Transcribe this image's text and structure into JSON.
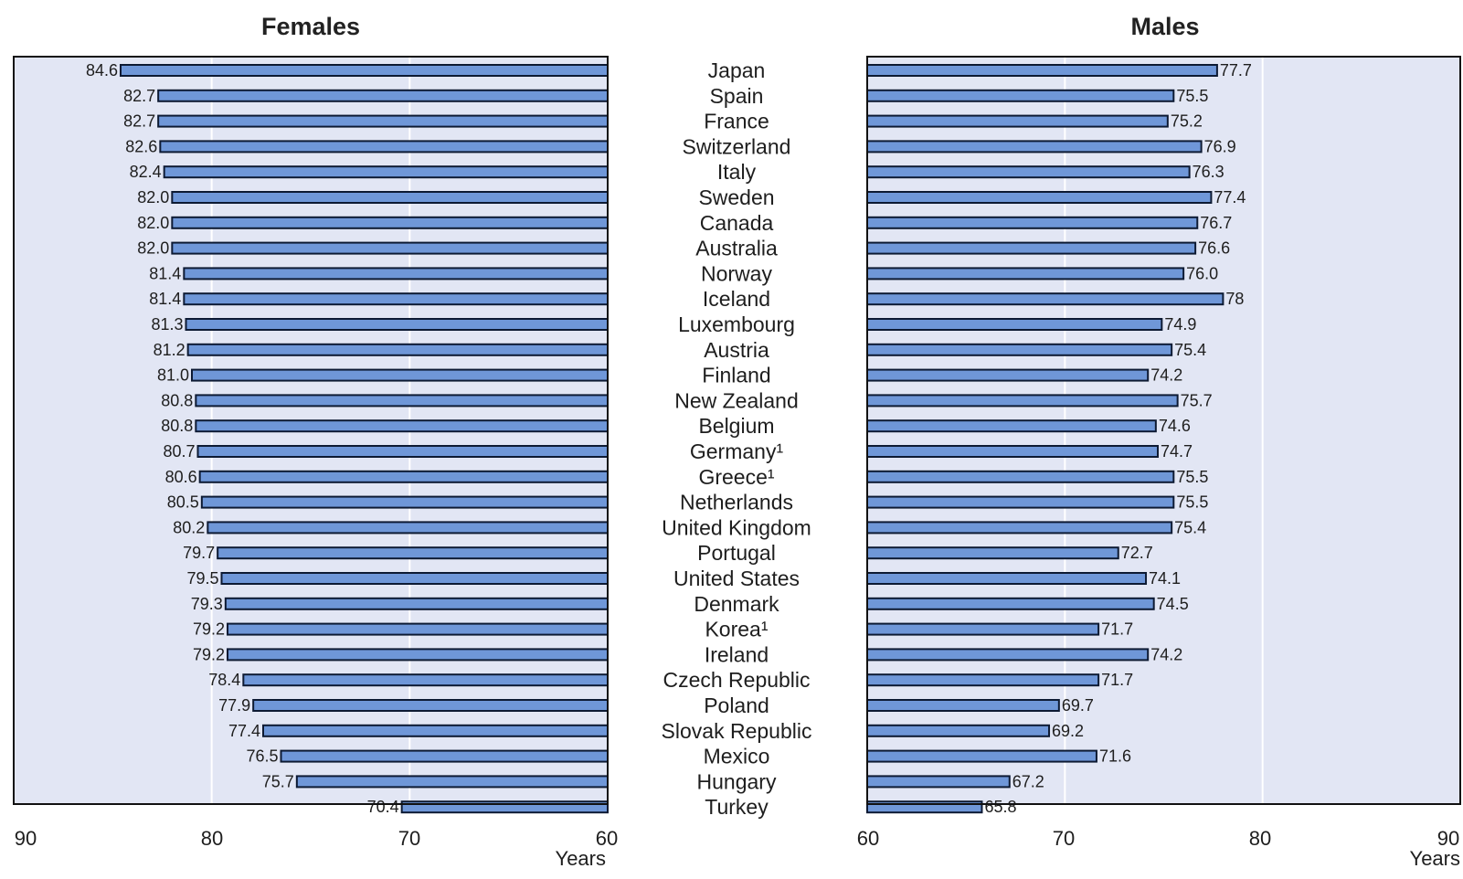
{
  "colors": {
    "bar_fill": "#6f97d8",
    "bar_stroke": "#0d1a33",
    "plot_background": "#e2e6f4",
    "gridline": "#ffffff",
    "frame": "#111111"
  },
  "chart_data": [
    {
      "type": "bar",
      "orientation": "horizontal",
      "title": "Females",
      "xlabel": "Years",
      "xlim": [
        60,
        90
      ],
      "x_direction": "reversed",
      "ticks": [
        "90",
        "80",
        "70",
        "60"
      ],
      "categories": [
        "Japan",
        "Spain",
        "France",
        "Switzerland",
        "Italy",
        "Sweden",
        "Canada",
        "Australia",
        "Norway",
        "Iceland",
        "Luxembourg",
        "Austria",
        "Finland",
        "New Zealand",
        "Belgium",
        "Germany¹",
        "Greece¹",
        "Netherlands",
        "United Kingdom",
        "Portugal",
        "United States",
        "Denmark",
        "Korea¹",
        "Ireland",
        "Czech Republic",
        "Poland",
        "Slovak Republic",
        "Mexico",
        "Hungary",
        "Turkey"
      ],
      "values": [
        84.6,
        82.7,
        82.7,
        82.6,
        82.4,
        82.0,
        82.0,
        82.0,
        81.4,
        81.4,
        81.3,
        81.2,
        81.0,
        80.8,
        80.8,
        80.7,
        80.6,
        80.5,
        80.2,
        79.7,
        79.5,
        79.3,
        79.2,
        79.2,
        78.4,
        77.9,
        77.4,
        76.5,
        75.7,
        70.4
      ],
      "labels": [
        "84.6",
        "82.7",
        "82.7",
        "82.6",
        "82.4",
        "82.0",
        "82.0",
        "82.0",
        "81.4",
        "81.4",
        "81.3",
        "81.2",
        "81.0",
        "80.8",
        "80.8",
        "80.7",
        "80.6",
        "80.5",
        "80.2",
        "79.7",
        "79.5",
        "79.3",
        "79.2",
        "79.2",
        "78.4",
        "77.9",
        "77.4",
        "76.5",
        "75.7",
        "70.4"
      ],
      "grid": true
    },
    {
      "type": "bar",
      "orientation": "horizontal",
      "title": "Males",
      "xlabel": "Years",
      "xlim": [
        60,
        90
      ],
      "ticks": [
        "60",
        "70",
        "80",
        "90"
      ],
      "categories": [
        "Japan",
        "Spain",
        "France",
        "Switzerland",
        "Italy",
        "Sweden",
        "Canada",
        "Australia",
        "Norway",
        "Iceland",
        "Luxembourg",
        "Austria",
        "Finland",
        "New Zealand",
        "Belgium",
        "Germany¹",
        "Greece¹",
        "Netherlands",
        "United Kingdom",
        "Portugal",
        "United States",
        "Denmark",
        "Korea¹",
        "Ireland",
        "Czech Republic",
        "Poland",
        "Slovak Republic",
        "Mexico",
        "Hungary",
        "Turkey"
      ],
      "values": [
        77.7,
        75.5,
        75.2,
        76.9,
        76.3,
        77.4,
        76.7,
        76.6,
        76.0,
        78,
        74.9,
        75.4,
        74.2,
        75.7,
        74.6,
        74.7,
        75.5,
        75.5,
        75.4,
        72.7,
        74.1,
        74.5,
        71.7,
        74.2,
        71.7,
        69.7,
        69.2,
        71.6,
        67.2,
        65.8
      ],
      "labels": [
        "77.7",
        "75.5",
        "75.2",
        "76.9",
        "76.3",
        "77.4",
        "76.7",
        "76.6",
        "76.0",
        "78",
        "74.9",
        "75.4",
        "74.2",
        "75.7",
        "74.6",
        "74.7",
        "75.5",
        "75.5",
        "75.4",
        "72.7",
        "74.1",
        "74.5",
        "71.7",
        "74.2",
        "71.7",
        "69.7",
        "69.2",
        "71.6",
        "67.2",
        "65.8"
      ],
      "grid": true
    }
  ]
}
